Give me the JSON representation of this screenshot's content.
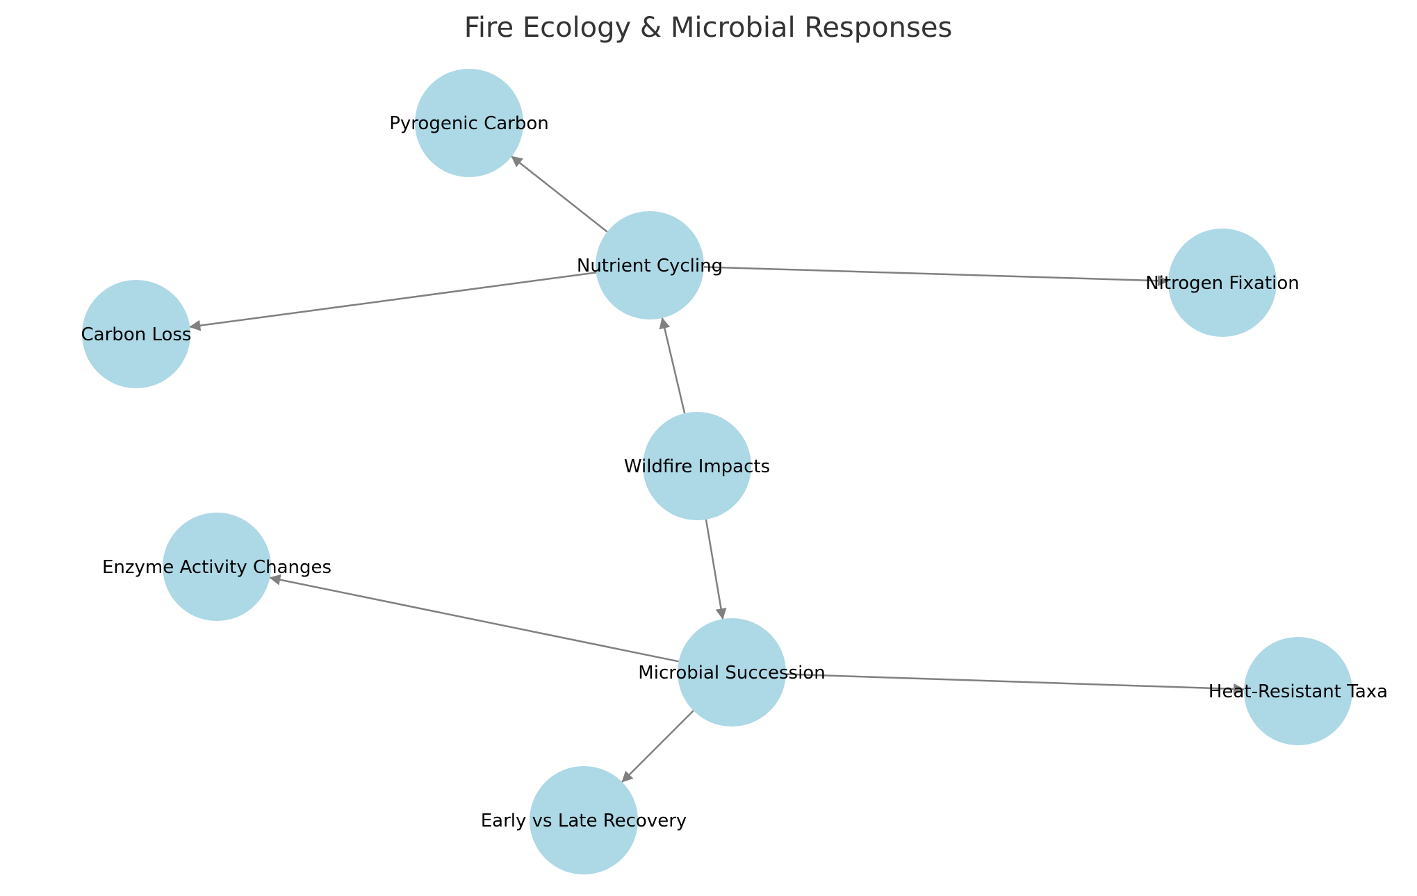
{
  "title": "Fire Ecology & Microbial Responses",
  "style": {
    "node_color": "#add8e6",
    "edge_color": "#808080",
    "label_color": "#000000",
    "title_color": "#333333"
  },
  "nodes": [
    {
      "id": "wildfire",
      "label": "Wildfire Impacts"
    },
    {
      "id": "nutrient",
      "label": "Nutrient Cycling"
    },
    {
      "id": "succession",
      "label": "Microbial Succession"
    },
    {
      "id": "pyro",
      "label": "Pyrogenic Carbon"
    },
    {
      "id": "carbonloss",
      "label": "Carbon Loss"
    },
    {
      "id": "nfix",
      "label": "Nitrogen Fixation"
    },
    {
      "id": "enzyme",
      "label": "Enzyme Activity Changes"
    },
    {
      "id": "heat",
      "label": "Heat-Resistant Taxa"
    },
    {
      "id": "recovery",
      "label": "Early vs Late Recovery"
    }
  ],
  "edges": [
    {
      "from": "wildfire",
      "to": "nutrient"
    },
    {
      "from": "wildfire",
      "to": "succession"
    },
    {
      "from": "nutrient",
      "to": "pyro"
    },
    {
      "from": "nutrient",
      "to": "carbonloss"
    },
    {
      "from": "nutrient",
      "to": "nfix"
    },
    {
      "from": "succession",
      "to": "enzyme"
    },
    {
      "from": "succession",
      "to": "heat"
    },
    {
      "from": "succession",
      "to": "recovery"
    }
  ]
}
